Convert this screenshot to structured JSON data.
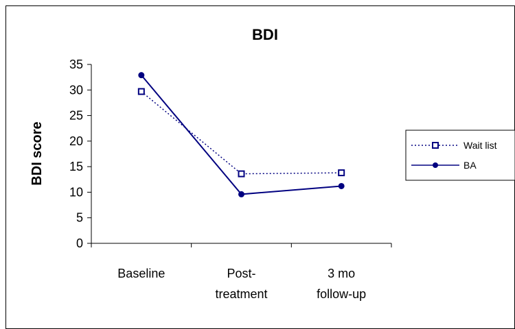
{
  "chart_data": {
    "type": "line",
    "title": "BDI",
    "xlabel": "",
    "ylabel": "BDI score",
    "categories": [
      [
        "Baseline"
      ],
      [
        "Post-",
        "treatment"
      ],
      [
        "3 mo",
        "follow-up"
      ]
    ],
    "ylim": [
      0,
      35
    ],
    "yticks": [
      0,
      5,
      10,
      15,
      20,
      25,
      30,
      35
    ],
    "grid": false,
    "legend_position": "right",
    "series": [
      {
        "name": "Wait list",
        "values": [
          29.7,
          13.6,
          13.8
        ],
        "color": "#000080",
        "line_style": "dotted",
        "marker": "square"
      },
      {
        "name": "BA",
        "values": [
          32.9,
          9.6,
          11.2
        ],
        "color": "#000080",
        "line_style": "solid",
        "marker": "circle"
      }
    ]
  }
}
